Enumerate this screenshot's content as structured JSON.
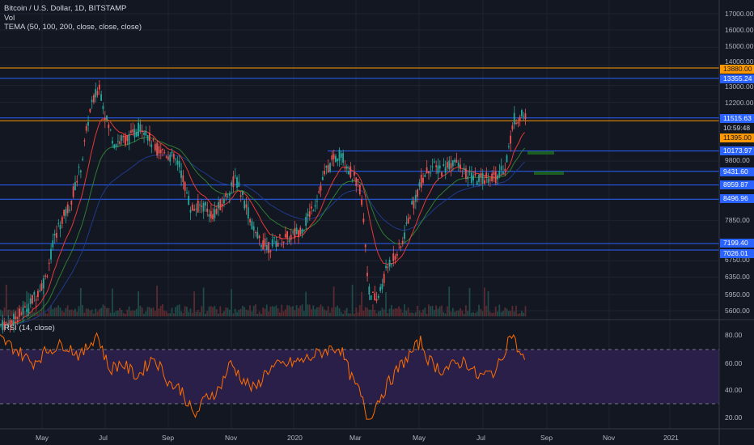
{
  "legend": {
    "title": "Bitcoin / U.S. Dollar, 1D, BITSTAMP",
    "vol": "Vol",
    "tema": "TEMA (50, 100, 200, close, close, close)",
    "rsi": "RSI (14, close)"
  },
  "price_axis": [
    "17000.00",
    "16000.00",
    "15000.00",
    "14000.00",
    "13000.00",
    "12200.00",
    "9800.00",
    "7850.00",
    "6750.00",
    "6350.00",
    "5950.00",
    "5600.00"
  ],
  "rsi_axis": [
    "80.00",
    "60.00",
    "40.00",
    "20.00"
  ],
  "time_axis": [
    "May",
    "Jul",
    "Sep",
    "Nov",
    "2020",
    "Mar",
    "May",
    "Jul",
    "Sep",
    "Nov",
    "2021"
  ],
  "tags": {
    "t13880": "13880.00",
    "t13355": "13355.24",
    "t11515": "11515.63",
    "t1059": "10:59:48",
    "t11395": "11395.00",
    "t10173": "10173.97",
    "t9431": "9431.60",
    "t8959": "8959.87",
    "t8496": "8496.96",
    "t7199": "7199.40",
    "t7026": "7026.01"
  },
  "colors": {
    "background": "#131722",
    "up": "#26a69a",
    "down": "#ef5350",
    "line_blue": "#2962ff",
    "line_orange": "#ff9800",
    "rsi": "#ff6d00",
    "rsi_band": "#2a1f49",
    "tema50": "#e53935",
    "tema100": "#2e7d32",
    "tema200": "#1e3a8a"
  },
  "chart_data": {
    "type": "candlestick",
    "h_lines": [
      13880,
      13355.24,
      11515.63,
      11395,
      10173.97,
      9431.6,
      8959.87,
      8496.96,
      7199.4,
      7026.01
    ],
    "rsi_levels": [
      70,
      30
    ],
    "price_anchors": [
      [
        0,
        5300
      ],
      [
        15,
        5400
      ],
      [
        35,
        5700
      ],
      [
        55,
        6300
      ],
      [
        70,
        7600
      ],
      [
        85,
        8300
      ],
      [
        100,
        9700
      ],
      [
        110,
        11800
      ],
      [
        122,
        13000
      ],
      [
        130,
        11500
      ],
      [
        140,
        10500
      ],
      [
        160,
        10700
      ],
      [
        175,
        11200
      ],
      [
        190,
        10300
      ],
      [
        205,
        10100
      ],
      [
        220,
        9700
      ],
      [
        235,
        8200
      ],
      [
        250,
        8300
      ],
      [
        262,
        8000
      ],
      [
        275,
        8400
      ],
      [
        290,
        9200
      ],
      [
        300,
        8500
      ],
      [
        315,
        7400
      ],
      [
        330,
        7100
      ],
      [
        345,
        7300
      ],
      [
        360,
        7400
      ],
      [
        375,
        7700
      ],
      [
        390,
        8500
      ],
      [
        400,
        9300
      ],
      [
        410,
        9800
      ],
      [
        420,
        10100
      ],
      [
        432,
        9400
      ],
      [
        445,
        8800
      ],
      [
        455,
        6000
      ],
      [
        465,
        5800
      ],
      [
        480,
        6700
      ],
      [
        495,
        7100
      ],
      [
        505,
        8000
      ],
      [
        520,
        9100
      ],
      [
        530,
        9600
      ],
      [
        545,
        9500
      ],
      [
        560,
        9800
      ],
      [
        575,
        9300
      ],
      [
        590,
        9100
      ],
      [
        605,
        9300
      ],
      [
        615,
        9200
      ],
      [
        625,
        9800
      ],
      [
        635,
        11500
      ],
      [
        645,
        11600
      ],
      [
        650,
        11500
      ]
    ],
    "rsi_anchors": [
      [
        0,
        78
      ],
      [
        20,
        70
      ],
      [
        40,
        60
      ],
      [
        60,
        70
      ],
      [
        80,
        74
      ],
      [
        100,
        65
      ],
      [
        120,
        82
      ],
      [
        135,
        55
      ],
      [
        150,
        60
      ],
      [
        170,
        50
      ],
      [
        190,
        65
      ],
      [
        210,
        45
      ],
      [
        225,
        40
      ],
      [
        240,
        20
      ],
      [
        255,
        35
      ],
      [
        270,
        40
      ],
      [
        285,
        60
      ],
      [
        300,
        48
      ],
      [
        315,
        40
      ],
      [
        330,
        55
      ],
      [
        345,
        58
      ],
      [
        360,
        60
      ],
      [
        375,
        62
      ],
      [
        390,
        66
      ],
      [
        405,
        70
      ],
      [
        420,
        72
      ],
      [
        435,
        48
      ],
      [
        445,
        38
      ],
      [
        455,
        18
      ],
      [
        465,
        30
      ],
      [
        480,
        45
      ],
      [
        495,
        58
      ],
      [
        505,
        65
      ],
      [
        520,
        76
      ],
      [
        530,
        62
      ],
      [
        545,
        55
      ],
      [
        560,
        58
      ],
      [
        575,
        62
      ],
      [
        590,
        50
      ],
      [
        605,
        52
      ],
      [
        615,
        56
      ],
      [
        625,
        72
      ],
      [
        632,
        83
      ],
      [
        640,
        70
      ],
      [
        650,
        60
      ]
    ]
  }
}
